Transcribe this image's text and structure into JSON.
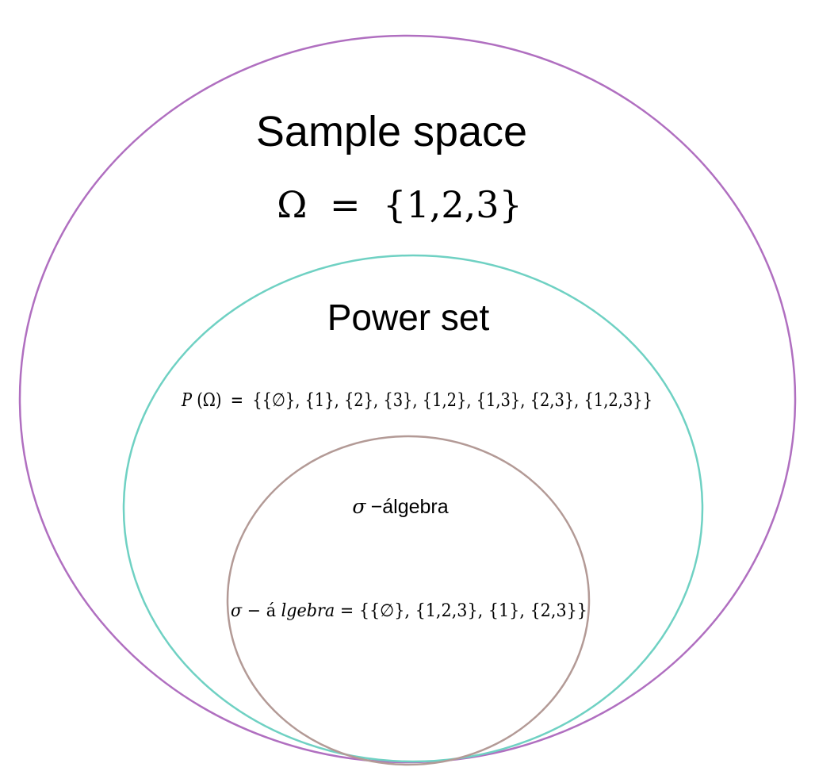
{
  "colors": {
    "outer_ellipse": "#b06fc0",
    "middle_ellipse": "#6fd1c3",
    "inner_ellipse": "#b39a96",
    "text": "#000000"
  },
  "sample_space": {
    "title": "Sample space",
    "formula_lhs": "Ω",
    "formula_eq": "=",
    "formula_rhs": "{1,2,3}"
  },
  "power_set": {
    "title": "Power set",
    "formula_lhs_p": "P",
    "formula_lhs_arg": "(Ω)",
    "formula_eq": "=",
    "formula_rhs": "{{∅}, {1}, {2}, {3}, {1,2}, {1,3}, {2,3}, {1,2,3}}"
  },
  "sigma_algebra": {
    "title_sigma": "σ",
    "title_text": " −álgebra",
    "formula_sigma": "σ",
    "formula_minus": " − ",
    "formula_a": "á",
    "formula_word": "lgebra",
    "formula_eq": " = ",
    "formula_rhs": "{{∅}, {1,2,3}, {1}, {2,3}}"
  }
}
